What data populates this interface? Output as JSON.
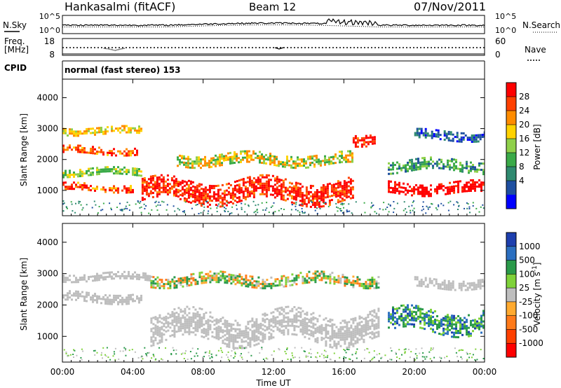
{
  "header": {
    "station": "Hankasalmi (fitACF)",
    "beam": "Beam 12",
    "date": "07/Nov/2011"
  },
  "noise_panel": {
    "left_label": "N.Sky",
    "right_label": "N.Search",
    "ticks_left": [
      "10^5",
      "10^0"
    ],
    "ticks_right": [
      "10^5",
      "10^0"
    ]
  },
  "freq_panel": {
    "left_label_1": "Freq.",
    "left_label_2": "[MHz]",
    "right_label": "Nave",
    "ticks_left": [
      "18",
      "8"
    ],
    "ticks_right": [
      "60",
      "0"
    ]
  },
  "cpid": {
    "label": "CPID",
    "mode": "normal (fast stereo) 153"
  },
  "chart_data": [
    {
      "type": "heatmap",
      "name": "power",
      "ylabel": "Slant Range [km]",
      "ylim": [
        180,
        4600
      ],
      "yticks": [
        "4000",
        "3000",
        "2000",
        "1000"
      ],
      "xlim_hours": [
        0,
        24
      ],
      "colorbar": {
        "title": "Power [dB]",
        "ticks": [
          "28",
          "24",
          "20",
          "16",
          "12",
          "8",
          "4"
        ],
        "colors": [
          "#ff0000",
          "#ff4000",
          "#ff8c00",
          "#ffd200",
          "#8fd04a",
          "#3aaa48",
          "#2f8a70",
          "#1e4fa0",
          "#0000ff"
        ]
      },
      "echo_bands": [
        {
          "start": 0,
          "end": 4.5,
          "range_km": 2950,
          "width_km": 220,
          "level": "16-20 dB"
        },
        {
          "start": 0,
          "end": 4.3,
          "range_km": 2300,
          "width_km": 250,
          "level": "20-28 dB"
        },
        {
          "start": 0,
          "end": 4.5,
          "range_km": 1600,
          "width_km": 250,
          "level": "12-20 dB"
        },
        {
          "start": 0,
          "end": 4.0,
          "range_km": 1100,
          "width_km": 250,
          "level": "20-28 dB"
        },
        {
          "start": 4.5,
          "end": 16.5,
          "range_km": 1000,
          "width_km": 700,
          "level": "24-28 dB"
        },
        {
          "start": 6.5,
          "end": 16.5,
          "range_km": 2000,
          "width_km": 400,
          "level": "16-24 dB"
        },
        {
          "start": 16.5,
          "end": 17.8,
          "range_km": 2700,
          "width_km": 350,
          "level": "24-28 dB"
        },
        {
          "start": 18.5,
          "end": 24,
          "range_km": 1100,
          "width_km": 350,
          "level": "28 dB"
        },
        {
          "start": 18.5,
          "end": 24,
          "range_km": 1800,
          "width_km": 400,
          "level": "8-16 dB"
        },
        {
          "start": 20,
          "end": 24,
          "range_km": 2800,
          "width_km": 300,
          "level": "4-8 dB"
        }
      ]
    },
    {
      "type": "heatmap",
      "name": "velocity",
      "ylabel": "Slant Range [km]",
      "ylim": [
        180,
        4600
      ],
      "yticks": [
        "4000",
        "3000",
        "2000",
        "1000"
      ],
      "xlim_hours": [
        0,
        24
      ],
      "colorbar": {
        "title": "Velocity [m s",
        "title_exp": "-1",
        "title_end": "]",
        "ticks": [
          "1000",
          "500",
          "100",
          "25",
          "-25",
          "-100",
          "-500",
          "-1000"
        ],
        "colors": [
          "#1d3fae",
          "#2b6fc0",
          "#2a9a4a",
          "#7fd23a",
          "#bebebe",
          "#ffaa30",
          "#ff7a1a",
          "#ff4000",
          "#ff0000"
        ]
      },
      "echo_bands": [
        {
          "start": 0,
          "end": 5,
          "range_km": 2900,
          "width_km": 250,
          "class": "ground scatter"
        },
        {
          "start": 0,
          "end": 4.5,
          "range_km": 2250,
          "width_km": 300,
          "class": "ground scatter"
        },
        {
          "start": 5,
          "end": 18,
          "range_km": 1300,
          "width_km": 900,
          "class": "ground scatter"
        },
        {
          "start": 5,
          "end": 18,
          "range_km": 2800,
          "width_km": 400,
          "class": "-100 to 100"
        },
        {
          "start": 18.5,
          "end": 24,
          "range_km": 1500,
          "width_km": 700,
          "class": "100 to 500"
        },
        {
          "start": 20,
          "end": 24,
          "range_km": 2700,
          "width_km": 300,
          "class": "ground scatter"
        }
      ]
    }
  ],
  "time_axis": {
    "label": "Time UT",
    "ticks": [
      "00:00",
      "04:00",
      "08:00",
      "12:00",
      "16:00",
      "20:00",
      "00:00"
    ]
  }
}
